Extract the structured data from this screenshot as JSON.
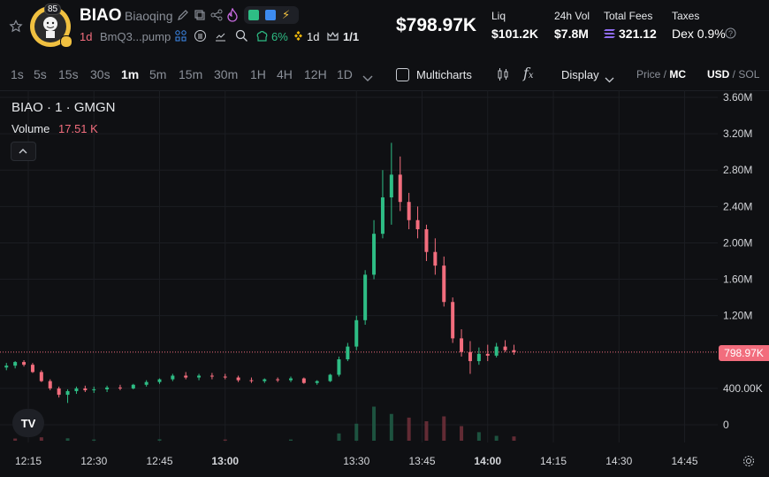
{
  "token": {
    "symbol": "BIAO",
    "name": "Biaoqing",
    "avatar_badge": "85",
    "age": "1d",
    "address_short": "BmQ3...pump",
    "holders_pct": "6%",
    "pair_age": "1d",
    "crown_ratio": "1/1",
    "market_cap": "$798.97K"
  },
  "stats": {
    "liq_label": "Liq",
    "liq_value": "$101.2K",
    "vol_label": "24h Vol",
    "vol_value": "$7.8M",
    "fees_label": "Total Fees",
    "fees_value": "321.12",
    "taxes_label": "Taxes",
    "taxes_value": "Dex 0.9%"
  },
  "toolbar": {
    "timeframes": [
      "1s",
      "5s",
      "15s",
      "30s",
      "1m",
      "5m",
      "15m",
      "30m",
      "1H",
      "4H",
      "12H",
      "1D"
    ],
    "active_timeframe": "1m",
    "multicharts_label": "Multicharts",
    "display_label": "Display",
    "price_label": "Price",
    "mc_label": "MC",
    "usd_label": "USD",
    "sol_label": "SOL"
  },
  "chart_meta": {
    "pair_title": "BIAO · 1 · GMGN",
    "volume_label": "Volume",
    "volume_value": "17.51 K",
    "current_price_label": "798.97K",
    "tv_logo": "TV"
  },
  "colors": {
    "up": "#2ebd85",
    "down": "#f26d7d",
    "bg": "#0f1013"
  },
  "chart_data": {
    "type": "candlestick",
    "y_tick_labels": [
      "3.60M",
      "3.20M",
      "2.80M",
      "2.40M",
      "2.00M",
      "1.60M",
      "1.20M",
      "798.97K",
      "400.00K",
      "0"
    ],
    "ylim": [
      0,
      3600000
    ],
    "x_tick_labels": [
      "12:15",
      "12:30",
      "12:45",
      "13:00",
      "13:30",
      "13:45",
      "14:00",
      "14:15",
      "14:30",
      "14:45"
    ],
    "current_value": 798970,
    "series": [
      {
        "t": "12:08",
        "o": 620000,
        "h": 650000,
        "l": 590000,
        "c": 630000
      },
      {
        "t": "12:10",
        "o": 630000,
        "h": 680000,
        "l": 600000,
        "c": 650000
      },
      {
        "t": "12:12",
        "o": 650000,
        "h": 700000,
        "l": 620000,
        "c": 690000
      },
      {
        "t": "12:14",
        "o": 690000,
        "h": 710000,
        "l": 640000,
        "c": 660000
      },
      {
        "t": "12:16",
        "o": 660000,
        "h": 680000,
        "l": 570000,
        "c": 580000
      },
      {
        "t": "12:18",
        "o": 580000,
        "h": 600000,
        "l": 470000,
        "c": 480000
      },
      {
        "t": "12:20",
        "o": 480000,
        "h": 500000,
        "l": 380000,
        "c": 400000
      },
      {
        "t": "12:22",
        "o": 400000,
        "h": 420000,
        "l": 300000,
        "c": 330000
      },
      {
        "t": "12:24",
        "o": 330000,
        "h": 390000,
        "l": 240000,
        "c": 370000
      },
      {
        "t": "12:26",
        "o": 370000,
        "h": 420000,
        "l": 340000,
        "c": 400000
      },
      {
        "t": "12:28",
        "o": 400000,
        "h": 430000,
        "l": 360000,
        "c": 380000
      },
      {
        "t": "12:30",
        "o": 380000,
        "h": 420000,
        "l": 350000,
        "c": 390000
      },
      {
        "t": "12:33",
        "o": 390000,
        "h": 430000,
        "l": 360000,
        "c": 410000
      },
      {
        "t": "12:36",
        "o": 410000,
        "h": 440000,
        "l": 380000,
        "c": 400000
      },
      {
        "t": "12:39",
        "o": 400000,
        "h": 450000,
        "l": 390000,
        "c": 440000
      },
      {
        "t": "12:42",
        "o": 440000,
        "h": 490000,
        "l": 420000,
        "c": 470000
      },
      {
        "t": "12:45",
        "o": 470000,
        "h": 510000,
        "l": 450000,
        "c": 500000
      },
      {
        "t": "12:48",
        "o": 500000,
        "h": 560000,
        "l": 480000,
        "c": 540000
      },
      {
        "t": "12:51",
        "o": 540000,
        "h": 580000,
        "l": 500000,
        "c": 520000
      },
      {
        "t": "12:54",
        "o": 520000,
        "h": 560000,
        "l": 490000,
        "c": 540000
      },
      {
        "t": "12:57",
        "o": 540000,
        "h": 570000,
        "l": 500000,
        "c": 530000
      },
      {
        "t": "13:00",
        "o": 530000,
        "h": 560000,
        "l": 500000,
        "c": 520000
      },
      {
        "t": "13:03",
        "o": 520000,
        "h": 540000,
        "l": 470000,
        "c": 490000
      },
      {
        "t": "13:06",
        "o": 490000,
        "h": 520000,
        "l": 460000,
        "c": 480000
      },
      {
        "t": "13:09",
        "o": 480000,
        "h": 510000,
        "l": 460000,
        "c": 500000
      },
      {
        "t": "13:12",
        "o": 500000,
        "h": 520000,
        "l": 470000,
        "c": 490000
      },
      {
        "t": "13:15",
        "o": 490000,
        "h": 530000,
        "l": 470000,
        "c": 510000
      },
      {
        "t": "13:18",
        "o": 510000,
        "h": 520000,
        "l": 450000,
        "c": 460000
      },
      {
        "t": "13:21",
        "o": 460000,
        "h": 490000,
        "l": 440000,
        "c": 480000
      },
      {
        "t": "13:24",
        "o": 480000,
        "h": 560000,
        "l": 470000,
        "c": 550000
      },
      {
        "t": "13:26",
        "o": 550000,
        "h": 750000,
        "l": 530000,
        "c": 720000
      },
      {
        "t": "13:28",
        "o": 720000,
        "h": 900000,
        "l": 700000,
        "c": 860000
      },
      {
        "t": "13:30",
        "o": 860000,
        "h": 1200000,
        "l": 820000,
        "c": 1150000
      },
      {
        "t": "13:32",
        "o": 1150000,
        "h": 1700000,
        "l": 1100000,
        "c": 1650000
      },
      {
        "t": "13:34",
        "o": 1650000,
        "h": 2250000,
        "l": 1600000,
        "c": 2100000
      },
      {
        "t": "13:36",
        "o": 2100000,
        "h": 2800000,
        "l": 2050000,
        "c": 2500000
      },
      {
        "t": "13:38",
        "o": 2500000,
        "h": 3100000,
        "l": 2200000,
        "c": 2750000
      },
      {
        "t": "13:40",
        "o": 2750000,
        "h": 2950000,
        "l": 2350000,
        "c": 2450000
      },
      {
        "t": "13:42",
        "o": 2450000,
        "h": 2550000,
        "l": 2150000,
        "c": 2250000
      },
      {
        "t": "13:44",
        "o": 2250000,
        "h": 2400000,
        "l": 2050000,
        "c": 2150000
      },
      {
        "t": "13:46",
        "o": 2150000,
        "h": 2200000,
        "l": 1800000,
        "c": 1900000
      },
      {
        "t": "13:48",
        "o": 1900000,
        "h": 2050000,
        "l": 1650000,
        "c": 1750000
      },
      {
        "t": "13:50",
        "o": 1750000,
        "h": 1850000,
        "l": 1300000,
        "c": 1350000
      },
      {
        "t": "13:52",
        "o": 1350000,
        "h": 1400000,
        "l": 900000,
        "c": 950000
      },
      {
        "t": "13:54",
        "o": 950000,
        "h": 1050000,
        "l": 750000,
        "c": 800000
      },
      {
        "t": "13:56",
        "o": 800000,
        "h": 920000,
        "l": 560000,
        "c": 700000
      },
      {
        "t": "13:58",
        "o": 700000,
        "h": 850000,
        "l": 660000,
        "c": 780000
      },
      {
        "t": "14:00",
        "o": 780000,
        "h": 880000,
        "l": 700000,
        "c": 760000
      },
      {
        "t": "14:02",
        "o": 760000,
        "h": 900000,
        "l": 740000,
        "c": 860000
      },
      {
        "t": "14:04",
        "o": 860000,
        "h": 930000,
        "l": 800000,
        "c": 820000
      },
      {
        "t": "14:06",
        "o": 820000,
        "h": 880000,
        "l": 770000,
        "c": 798970
      }
    ],
    "volume": [
      {
        "t": "12:08",
        "v": 6000,
        "up": true
      },
      {
        "t": "12:12",
        "v": 9000,
        "up": false
      },
      {
        "t": "12:18",
        "v": 14000,
        "up": false
      },
      {
        "t": "12:24",
        "v": 10000,
        "up": true
      },
      {
        "t": "12:30",
        "v": 5000,
        "up": true
      },
      {
        "t": "12:45",
        "v": 6000,
        "up": true
      },
      {
        "t": "13:00",
        "v": 5000,
        "up": false
      },
      {
        "t": "13:15",
        "v": 5000,
        "up": true
      },
      {
        "t": "13:26",
        "v": 30000,
        "up": true
      },
      {
        "t": "13:30",
        "v": 70000,
        "up": true
      },
      {
        "t": "13:34",
        "v": 140000,
        "up": true
      },
      {
        "t": "13:38",
        "v": 110000,
        "up": true
      },
      {
        "t": "13:42",
        "v": 95000,
        "up": false
      },
      {
        "t": "13:46",
        "v": 80000,
        "up": false
      },
      {
        "t": "13:50",
        "v": 100000,
        "up": false
      },
      {
        "t": "13:54",
        "v": 60000,
        "up": false
      },
      {
        "t": "13:58",
        "v": 35000,
        "up": true
      },
      {
        "t": "14:02",
        "v": 20000,
        "up": true
      },
      {
        "t": "14:06",
        "v": 17510,
        "up": false
      }
    ]
  }
}
